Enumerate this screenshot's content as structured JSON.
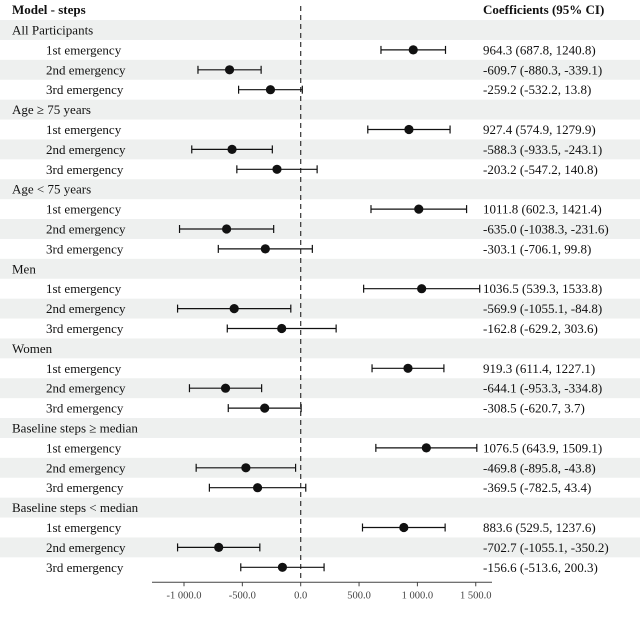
{
  "chart_data": {
    "type": "forest",
    "header": {
      "label": "Model - steps",
      "coef": "Coefficients (95% CI)"
    },
    "xlim": [
      -1300,
      1550
    ],
    "xticks": [
      -1000,
      -500,
      0,
      500,
      1000,
      1500
    ],
    "xtick_labels": [
      "-1 000.0",
      "-500.0",
      "0.0",
      "500.0",
      "1 000.0",
      "1 500.0"
    ],
    "reference_line": 0,
    "groups": [
      {
        "name": "All Participants",
        "rows": [
          {
            "label": "1st emergency",
            "est": 964.3,
            "lo": 687.8,
            "hi": 1240.8,
            "text": "964.3 (687.8, 1240.8)"
          },
          {
            "label": "2nd emergency",
            "est": -609.7,
            "lo": -880.3,
            "hi": -339.1,
            "text": "-609.7 (-880.3, -339.1)"
          },
          {
            "label": "3rd emergency",
            "est": -259.2,
            "lo": -532.2,
            "hi": 13.8,
            "text": "-259.2 (-532.2, 13.8)"
          }
        ]
      },
      {
        "name": "Age ≥ 75 years",
        "rows": [
          {
            "label": "1st emergency",
            "est": 927.4,
            "lo": 574.9,
            "hi": 1279.9,
            "text": "927.4 (574.9, 1279.9)"
          },
          {
            "label": "2nd emergency",
            "est": -588.3,
            "lo": -933.5,
            "hi": -243.1,
            "text": "-588.3 (-933.5, -243.1)"
          },
          {
            "label": "3rd emergency",
            "est": -203.2,
            "lo": -547.2,
            "hi": 140.8,
            "text": "-203.2 (-547.2, 140.8)"
          }
        ]
      },
      {
        "name": "Age < 75 years",
        "rows": [
          {
            "label": "1st emergency",
            "est": 1011.8,
            "lo": 602.3,
            "hi": 1421.4,
            "text": "1011.8 (602.3, 1421.4)"
          },
          {
            "label": "2nd emergency",
            "est": -635.0,
            "lo": -1038.3,
            "hi": -231.6,
            "text": "-635.0 (-1038.3, -231.6)"
          },
          {
            "label": "3rd emergency",
            "est": -303.1,
            "lo": -706.1,
            "hi": 99.8,
            "text": "-303.1 (-706.1, 99.8)"
          }
        ]
      },
      {
        "name": "Men",
        "rows": [
          {
            "label": "1st emergency",
            "est": 1036.5,
            "lo": 539.3,
            "hi": 1533.8,
            "text": "1036.5 (539.3, 1533.8)"
          },
          {
            "label": "2nd emergency",
            "est": -569.9,
            "lo": -1055.1,
            "hi": -84.8,
            "text": "-569.9 (-1055.1, -84.8)"
          },
          {
            "label": "3rd emergency",
            "est": -162.8,
            "lo": -629.2,
            "hi": 303.6,
            "text": "-162.8 (-629.2, 303.6)"
          }
        ]
      },
      {
        "name": "Women",
        "rows": [
          {
            "label": "1st emergency",
            "est": 919.3,
            "lo": 611.4,
            "hi": 1227.1,
            "text": "919.3 (611.4, 1227.1)"
          },
          {
            "label": "2nd emergency",
            "est": -644.1,
            "lo": -953.3,
            "hi": -334.8,
            "text": "-644.1 (-953.3, -334.8)"
          },
          {
            "label": "3rd emergency",
            "est": -308.5,
            "lo": -620.7,
            "hi": 3.7,
            "text": "-308.5 (-620.7, 3.7)"
          }
        ]
      },
      {
        "name": "Baseline steps ≥ median",
        "rows": [
          {
            "label": "1st emergency",
            "est": 1076.5,
            "lo": 643.9,
            "hi": 1509.1,
            "text": "1076.5 (643.9, 1509.1)"
          },
          {
            "label": "2nd emergency",
            "est": -469.8,
            "lo": -895.8,
            "hi": -43.8,
            "text": "-469.8 (-895.8, -43.8)"
          },
          {
            "label": "3rd emergency",
            "est": -369.5,
            "lo": -782.5,
            "hi": 43.4,
            "text": "-369.5 (-782.5, 43.4)"
          }
        ]
      },
      {
        "name": "Baseline steps < median",
        "rows": [
          {
            "label": "1st emergency",
            "est": 883.6,
            "lo": 529.5,
            "hi": 1237.6,
            "text": "883.6 (529.5, 1237.6)"
          },
          {
            "label": "2nd emergency",
            "est": -702.7,
            "lo": -1055.1,
            "hi": -350.2,
            "text": "-702.7 (-1055.1, -350.2)"
          },
          {
            "label": "3rd emergency",
            "est": -156.6,
            "lo": -513.6,
            "hi": 200.3,
            "text": "-156.6 (-513.6, 200.3)"
          }
        ]
      }
    ],
    "colors": {
      "stripe": "#eef0ef",
      "marker": "#111111",
      "axis": "#444444"
    }
  }
}
